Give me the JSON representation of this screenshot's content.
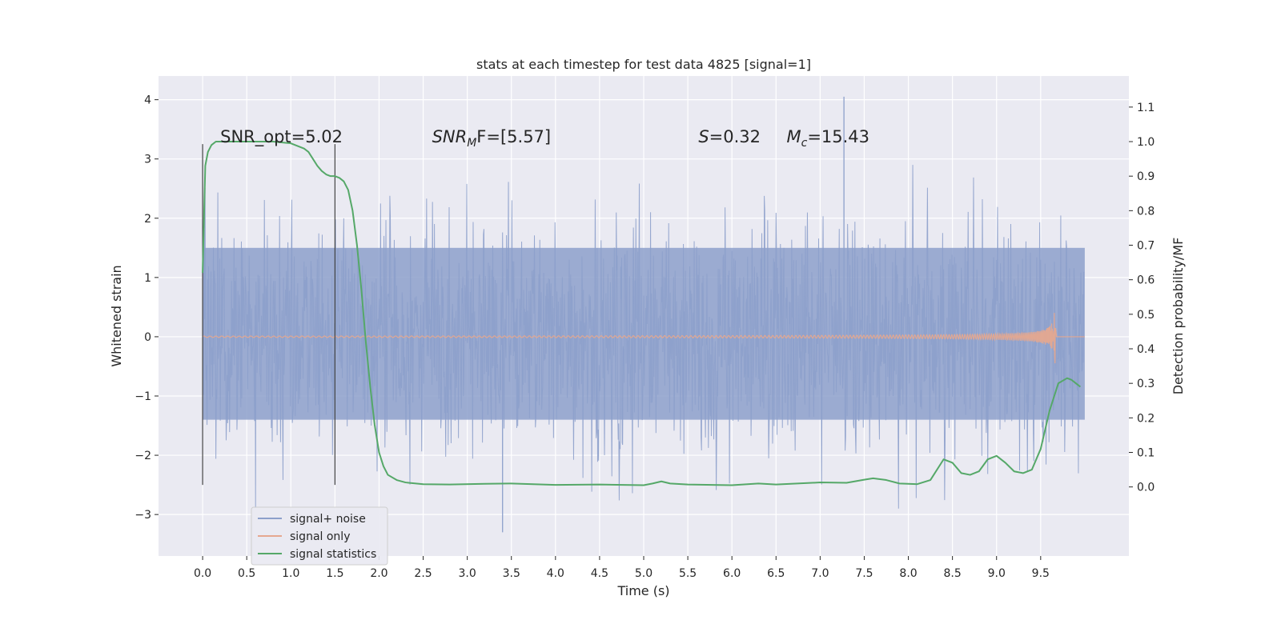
{
  "chart_data": {
    "type": "line",
    "title": "stats at each timestep for test data 4825 [signal=1]",
    "xlabel": "Time (s)",
    "ylabel": "Whitened strain",
    "ylabel_right": "Detection probability/MF",
    "xlim": [
      -0.5,
      10.5
    ],
    "ylim": [
      -3.7,
      4.4
    ],
    "ylim_right": [
      -0.2,
      1.19
    ],
    "x_ticks": [
      "0.0",
      "0.5",
      "1.0",
      "1.5",
      "2.0",
      "2.5",
      "3.0",
      "3.5",
      "4.0",
      "4.5",
      "5.0",
      "5.5",
      "6.0",
      "6.5",
      "7.0",
      "7.5",
      "8.0",
      "8.5",
      "9.0",
      "9.5"
    ],
    "y_ticks": [
      "−3",
      "−2",
      "−1",
      "0",
      "1",
      "2",
      "3",
      "4"
    ],
    "y_right_ticks": [
      "0.0",
      "0.1",
      "0.2",
      "0.3",
      "0.4",
      "0.5",
      "0.6",
      "0.7",
      "0.8",
      "0.9",
      "1.0",
      "1.1"
    ],
    "grid": true,
    "legend_position": "lower-left",
    "annotations": {
      "snr_opt": "SNR_opt=5.02",
      "snr_mf_name": "SNR",
      "snr_mf_sub": "M",
      "snr_mf_rest": "F=[5.57]",
      "s_name": "S",
      "s_value": "=0.32",
      "mc_name": "M",
      "mc_sub": "c",
      "mc_value": "=15.43"
    },
    "vertical_markers": [
      {
        "x": 0.0,
        "y_from": -2.5,
        "y_to": 3.25
      },
      {
        "x": 1.5,
        "y_from": -2.5,
        "y_to": 3.25
      }
    ],
    "series": [
      {
        "name": "signal+ noise",
        "color": "#8da0cb",
        "axis": "left",
        "style": "noise",
        "x_range": [
          0.0,
          10.0
        ],
        "envelope_upper": 1.5,
        "envelope_lower": -1.4,
        "extreme_peak": 4.05,
        "extreme_peak_x": 7.27,
        "extreme_trough": -3.3,
        "extreme_trough_x": 3.4
      },
      {
        "name": "signal only",
        "color": "#e5a88f",
        "axis": "left",
        "style": "chirp",
        "x_range": [
          0.0,
          9.67
        ],
        "merger_amplitude": 0.85,
        "after_merger_x_end": 10.0
      },
      {
        "name": "signal statistics",
        "color": "#55a868",
        "axis": "right",
        "style": "line",
        "x": [
          0.0,
          0.03,
          0.06,
          0.1,
          0.15,
          0.2,
          0.3,
          0.5,
          0.8,
          1.0,
          1.15,
          1.2,
          1.25,
          1.3,
          1.35,
          1.4,
          1.45,
          1.5,
          1.55,
          1.6,
          1.65,
          1.7,
          1.75,
          1.8,
          1.85,
          1.9,
          1.95,
          2.0,
          2.05,
          2.1,
          2.2,
          2.3,
          2.5,
          2.8,
          3.2,
          3.5,
          4.0,
          4.5,
          5.0,
          5.1,
          5.2,
          5.3,
          5.5,
          6.0,
          6.3,
          6.5,
          7.0,
          7.3,
          7.5,
          7.6,
          7.75,
          7.9,
          8.1,
          8.25,
          8.4,
          8.5,
          8.6,
          8.7,
          8.8,
          8.9,
          9.0,
          9.1,
          9.2,
          9.3,
          9.4,
          9.5,
          9.6,
          9.7,
          9.8,
          9.85,
          9.9,
          9.95
        ],
        "values": [
          0.62,
          0.93,
          0.97,
          0.99,
          1.0,
          1.0,
          1.0,
          1.0,
          1.0,
          0.995,
          0.98,
          0.97,
          0.95,
          0.93,
          0.915,
          0.905,
          0.9,
          0.9,
          0.895,
          0.885,
          0.86,
          0.8,
          0.7,
          0.57,
          0.42,
          0.29,
          0.18,
          0.1,
          0.06,
          0.035,
          0.02,
          0.013,
          0.008,
          0.007,
          0.009,
          0.01,
          0.006,
          0.007,
          0.005,
          0.01,
          0.016,
          0.01,
          0.007,
          0.005,
          0.01,
          0.007,
          0.013,
          0.012,
          0.021,
          0.025,
          0.02,
          0.01,
          0.008,
          0.02,
          0.08,
          0.07,
          0.04,
          0.035,
          0.045,
          0.08,
          0.09,
          0.07,
          0.045,
          0.04,
          0.05,
          0.11,
          0.22,
          0.3,
          0.315,
          0.31,
          0.3,
          0.29
        ]
      }
    ]
  }
}
